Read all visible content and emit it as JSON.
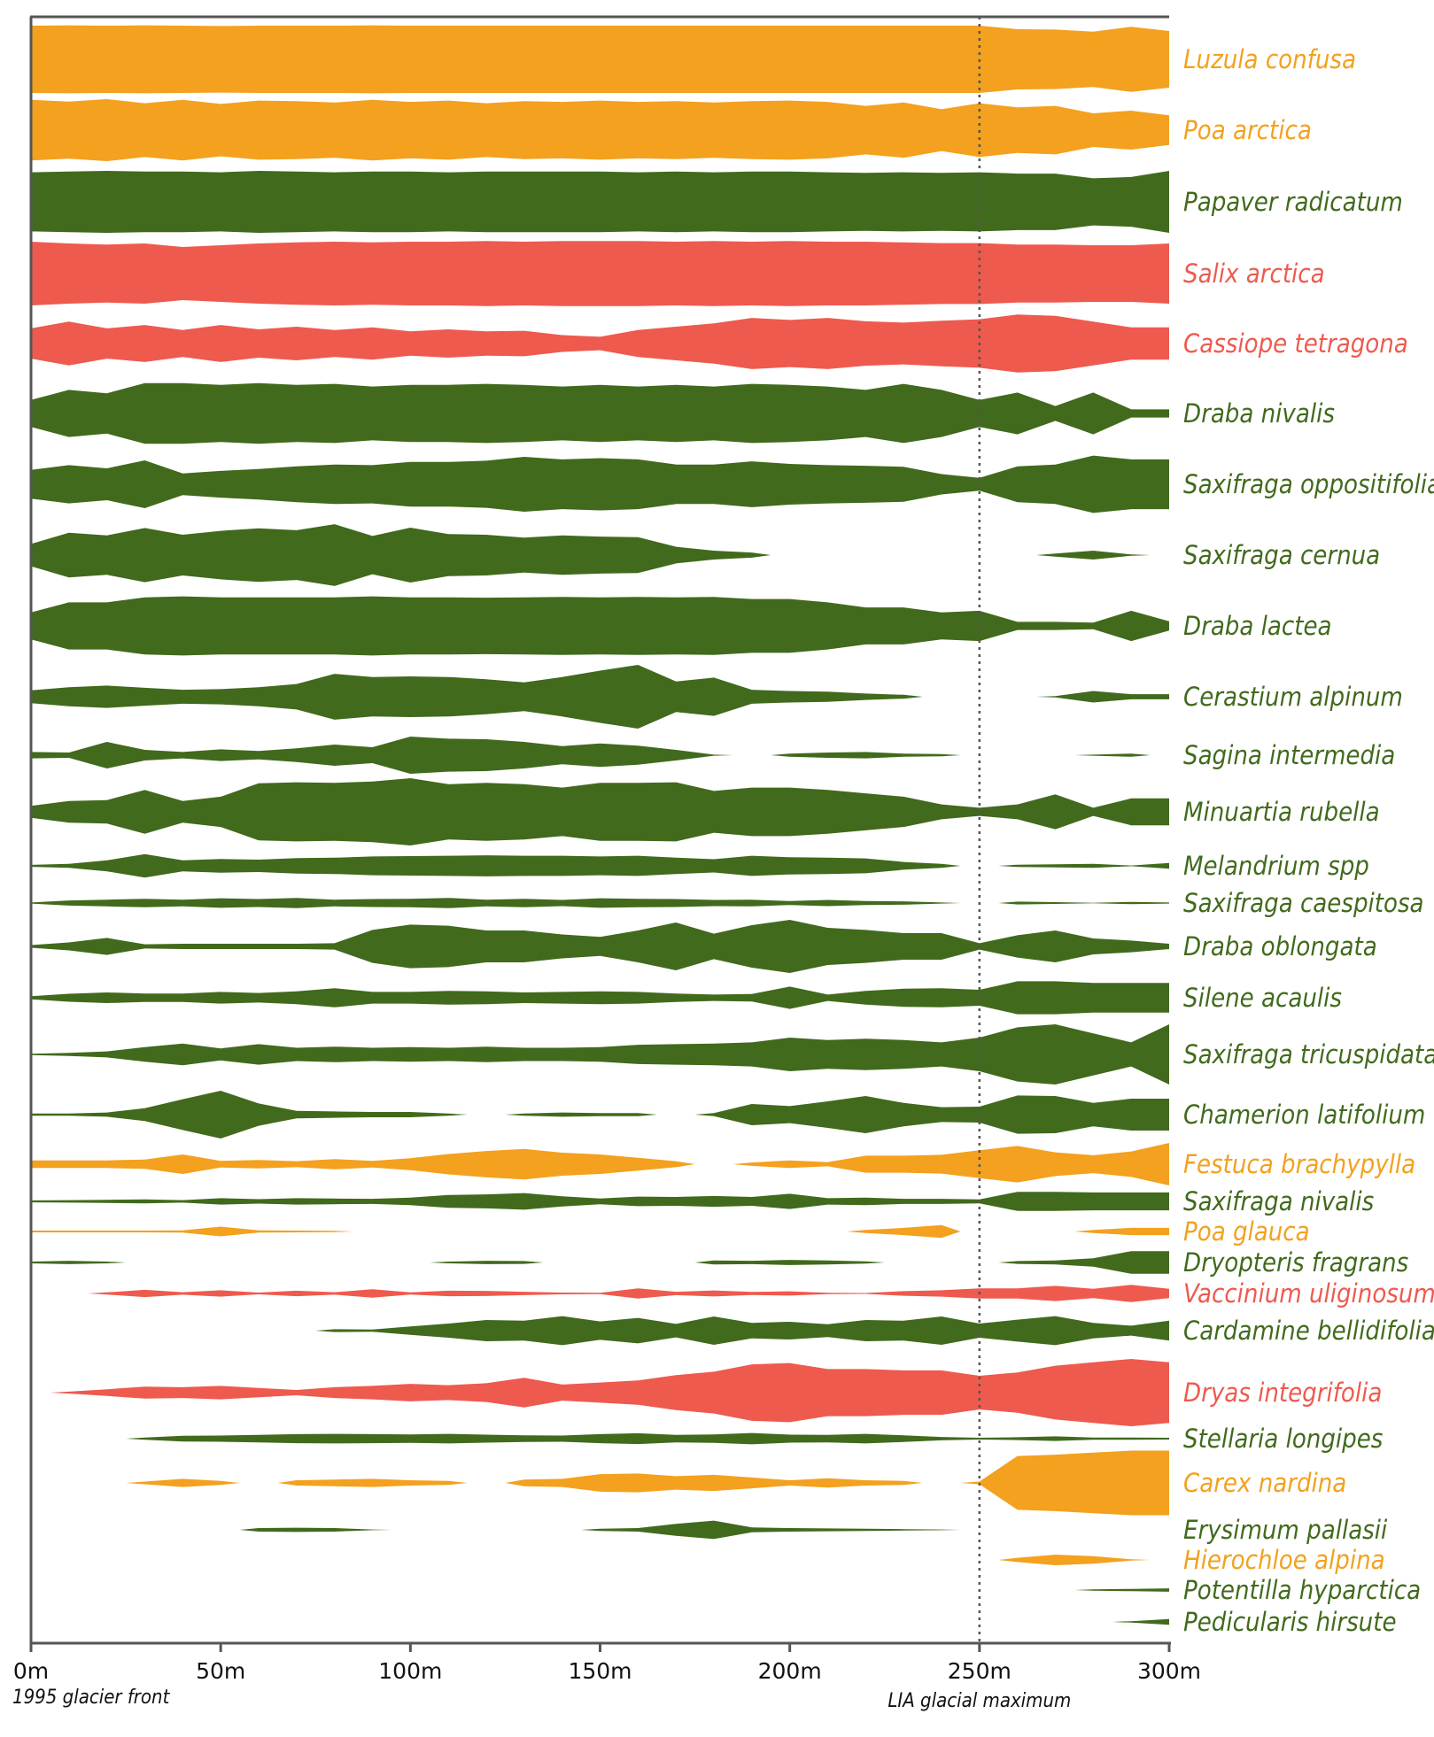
{
  "chart_data": {
    "type": "area",
    "x_unit": "m",
    "xlim": [
      0,
      300
    ],
    "x_ticks": [
      "0m",
      "50m",
      "100m",
      "150m",
      "200m",
      "250m",
      "300m"
    ],
    "x_tick_values": [
      0,
      50,
      100,
      150,
      200,
      250,
      300
    ],
    "xlabel": "",
    "ylabel": "",
    "title": "",
    "annotations": {
      "left_note": "1995 glacier front",
      "right_note": "LIA glacial maximum",
      "reference_line_x": 250
    },
    "colors": {
      "orange": "#F3A11E",
      "green": "#416A1C",
      "red": "#EE5A4E",
      "axis": "#555555"
    },
    "x": [
      0,
      10,
      20,
      30,
      40,
      50,
      60,
      70,
      80,
      90,
      100,
      110,
      120,
      130,
      140,
      150,
      160,
      170,
      180,
      190,
      200,
      210,
      220,
      230,
      240,
      250,
      260,
      270,
      280,
      290,
      300
    ],
    "series": [
      {
        "name": "Luzula confusa",
        "color": "orange",
        "values": [
          0.95,
          0.96,
          0.95,
          0.96,
          0.95,
          0.94,
          0.95,
          0.95,
          0.95,
          0.96,
          0.95,
          0.95,
          0.95,
          0.95,
          0.95,
          0.95,
          0.95,
          0.95,
          0.95,
          0.95,
          0.95,
          0.95,
          0.95,
          0.95,
          0.95,
          0.95,
          0.85,
          0.84,
          0.78,
          0.92,
          0.8
        ]
      },
      {
        "name": "Poa arctica",
        "color": "orange",
        "values": [
          0.9,
          0.85,
          0.92,
          0.8,
          0.9,
          0.78,
          0.88,
          0.86,
          0.82,
          0.9,
          0.84,
          0.88,
          0.8,
          0.86,
          0.84,
          0.88,
          0.84,
          0.86,
          0.82,
          0.86,
          0.88,
          0.84,
          0.72,
          0.82,
          0.62,
          0.8,
          0.68,
          0.72,
          0.5,
          0.58,
          0.44
        ]
      },
      {
        "name": "Papaver radicatum",
        "color": "green",
        "values": [
          0.88,
          0.9,
          0.92,
          0.9,
          0.9,
          0.88,
          0.92,
          0.9,
          0.88,
          0.9,
          0.9,
          0.88,
          0.9,
          0.9,
          0.9,
          0.9,
          0.88,
          0.9,
          0.88,
          0.9,
          0.9,
          0.88,
          0.86,
          0.88,
          0.86,
          0.88,
          0.84,
          0.84,
          0.7,
          0.74,
          0.92
        ]
      },
      {
        "name": "Salix arctica",
        "color": "red",
        "values": [
          0.9,
          0.85,
          0.82,
          0.85,
          0.75,
          0.8,
          0.85,
          0.88,
          0.9,
          0.88,
          0.9,
          0.9,
          0.92,
          0.9,
          0.92,
          0.92,
          0.92,
          0.9,
          0.92,
          0.9,
          0.92,
          0.9,
          0.9,
          0.88,
          0.86,
          0.86,
          0.82,
          0.82,
          0.8,
          0.8,
          0.85
        ]
      },
      {
        "name": "Cassiope tetragona",
        "color": "red",
        "values": [
          0.45,
          0.65,
          0.45,
          0.55,
          0.4,
          0.55,
          0.42,
          0.5,
          0.4,
          0.48,
          0.36,
          0.42,
          0.36,
          0.38,
          0.25,
          0.2,
          0.4,
          0.5,
          0.6,
          0.76,
          0.7,
          0.76,
          0.66,
          0.62,
          0.68,
          0.72,
          0.86,
          0.82,
          0.65,
          0.48,
          0.48
        ]
      },
      {
        "name": "Draba nivalis",
        "color": "green",
        "values": [
          0.4,
          0.7,
          0.6,
          0.9,
          0.9,
          0.85,
          0.9,
          0.85,
          0.88,
          0.8,
          0.85,
          0.85,
          0.88,
          0.85,
          0.8,
          0.85,
          0.8,
          0.85,
          0.8,
          0.88,
          0.85,
          0.8,
          0.7,
          0.88,
          0.7,
          0.4,
          0.62,
          0.22,
          0.62,
          0.12,
          0.12
        ]
      },
      {
        "name": "Saxifraga oppositifolia",
        "color": "green",
        "values": [
          0.45,
          0.6,
          0.5,
          0.75,
          0.34,
          0.42,
          0.48,
          0.56,
          0.62,
          0.6,
          0.7,
          0.7,
          0.74,
          0.86,
          0.78,
          0.82,
          0.78,
          0.62,
          0.62,
          0.72,
          0.64,
          0.6,
          0.58,
          0.55,
          0.32,
          0.2,
          0.56,
          0.62,
          0.9,
          0.78,
          0.78
        ]
      },
      {
        "name": "Saxifraga cernua",
        "color": "green",
        "values": [
          0.35,
          0.7,
          0.62,
          0.85,
          0.64,
          0.76,
          0.84,
          0.78,
          0.97,
          0.6,
          0.86,
          0.66,
          0.64,
          0.55,
          0.62,
          0.58,
          0.56,
          0.26,
          0.14,
          0.08,
          0,
          0,
          0,
          0,
          0,
          0,
          0,
          0.05,
          0.14,
          0.02,
          0
        ]
      },
      {
        "name": "Draba lactea",
        "color": "green",
        "values": [
          0.4,
          0.7,
          0.7,
          0.85,
          0.88,
          0.85,
          0.85,
          0.85,
          0.85,
          0.88,
          0.85,
          0.85,
          0.84,
          0.85,
          0.86,
          0.85,
          0.86,
          0.85,
          0.86,
          0.8,
          0.8,
          0.7,
          0.55,
          0.55,
          0.4,
          0.45,
          0.12,
          0.12,
          0.1,
          0.45,
          0.14
        ]
      },
      {
        "name": "Cerastium alpinum",
        "color": "green",
        "values": [
          0.2,
          0.3,
          0.35,
          0.28,
          0.22,
          0.24,
          0.3,
          0.4,
          0.72,
          0.62,
          0.64,
          0.62,
          0.55,
          0.45,
          0.62,
          0.82,
          1.0,
          0.48,
          0.6,
          0.22,
          0.18,
          0.16,
          0.1,
          0.06,
          0,
          0,
          0,
          0.02,
          0.18,
          0.08,
          0.08
        ]
      },
      {
        "name": "Sagina intermedia",
        "color": "green",
        "values": [
          0.12,
          0.1,
          0.5,
          0.2,
          0.12,
          0.22,
          0.16,
          0.26,
          0.4,
          0.3,
          0.7,
          0.62,
          0.6,
          0.5,
          0.34,
          0.44,
          0.36,
          0.2,
          0.02,
          0,
          0.06,
          0.1,
          0.12,
          0.06,
          0.04,
          0,
          0,
          0,
          0.02,
          0.06,
          0
        ]
      },
      {
        "name": "Minuartia rubella",
        "color": "green",
        "values": [
          0.18,
          0.32,
          0.35,
          0.65,
          0.32,
          0.45,
          0.85,
          0.88,
          0.86,
          0.9,
          1.0,
          0.82,
          0.86,
          0.82,
          0.72,
          0.86,
          0.86,
          0.88,
          0.62,
          0.72,
          0.72,
          0.65,
          0.55,
          0.45,
          0.22,
          0.12,
          0.22,
          0.52,
          0.12,
          0.4,
          0.4
        ]
      },
      {
        "name": "Melandrium spp",
        "color": "green",
        "values": [
          0.05,
          0.1,
          0.28,
          0.6,
          0.28,
          0.35,
          0.32,
          0.4,
          0.42,
          0.48,
          0.5,
          0.52,
          0.54,
          0.52,
          0.52,
          0.48,
          0.52,
          0.42,
          0.34,
          0.52,
          0.44,
          0.42,
          0.38,
          0.2,
          0.1,
          0,
          0.06,
          0.08,
          0.1,
          0.02,
          0.15
        ]
      },
      {
        "name": "Saxifraga caespitosa",
        "color": "green",
        "values": [
          0.04,
          0.18,
          0.24,
          0.3,
          0.24,
          0.34,
          0.28,
          0.36,
          0.24,
          0.28,
          0.3,
          0.36,
          0.24,
          0.3,
          0.22,
          0.34,
          0.3,
          0.28,
          0.22,
          0.24,
          0.14,
          0.22,
          0.14,
          0.12,
          0.04,
          0,
          0.1,
          0.06,
          0.02,
          0.08,
          0.04
        ]
      },
      {
        "name": "Draba oblongata",
        "color": "green",
        "values": [
          0.05,
          0.15,
          0.32,
          0.08,
          0.1,
          0.1,
          0.1,
          0.1,
          0.12,
          0.62,
          0.82,
          0.78,
          0.6,
          0.6,
          0.45,
          0.36,
          0.6,
          0.9,
          0.48,
          0.8,
          1.0,
          0.7,
          0.62,
          0.5,
          0.5,
          0.12,
          0.42,
          0.6,
          0.3,
          0.22,
          0.1
        ]
      },
      {
        "name": "Silene acaulis",
        "color": "green",
        "values": [
          0.06,
          0.15,
          0.2,
          0.16,
          0.16,
          0.22,
          0.18,
          0.24,
          0.36,
          0.22,
          0.22,
          0.26,
          0.24,
          0.2,
          0.22,
          0.24,
          0.22,
          0.16,
          0.12,
          0.14,
          0.42,
          0.12,
          0.26,
          0.34,
          0.36,
          0.3,
          0.62,
          0.62,
          0.56,
          0.56,
          0.56
        ]
      },
      {
        "name": "Saxifraga tricuspidata",
        "color": "green",
        "values": [
          0.02,
          0.05,
          0.1,
          0.24,
          0.36,
          0.2,
          0.34,
          0.22,
          0.26,
          0.22,
          0.24,
          0.22,
          0.26,
          0.22,
          0.22,
          0.24,
          0.32,
          0.34,
          0.36,
          0.4,
          0.56,
          0.48,
          0.52,
          0.48,
          0.4,
          0.56,
          0.9,
          1.0,
          0.7,
          0.4,
          1.0
        ]
      },
      {
        "name": "Chamerion latifolium",
        "color": "green",
        "values": [
          0.04,
          0.04,
          0.08,
          0.24,
          0.58,
          0.9,
          0.42,
          0.14,
          0.12,
          0.1,
          0.1,
          0.04,
          0,
          0.04,
          0.08,
          0.06,
          0.06,
          0,
          0.06,
          0.4,
          0.32,
          0.5,
          0.7,
          0.44,
          0.28,
          0.3,
          0.72,
          0.7,
          0.44,
          0.6,
          0.6
        ]
      },
      {
        "name": "Festuca brachypylla",
        "color": "orange",
        "values": [
          0.18,
          0.18,
          0.18,
          0.22,
          0.46,
          0.16,
          0.2,
          0.14,
          0.24,
          0.16,
          0.28,
          0.48,
          0.62,
          0.72,
          0.54,
          0.46,
          0.3,
          0.14,
          0,
          0.08,
          0.18,
          0.1,
          0.4,
          0.4,
          0.44,
          0.66,
          0.86,
          0.56,
          0.42,
          0.6,
          1.0
        ]
      },
      {
        "name": "Saxifraga nivalis",
        "color": "green",
        "values": [
          0.06,
          0.08,
          0.1,
          0.12,
          0.08,
          0.2,
          0.14,
          0.2,
          0.18,
          0.16,
          0.24,
          0.4,
          0.44,
          0.52,
          0.32,
          0.18,
          0.3,
          0.28,
          0.34,
          0.28,
          0.48,
          0.2,
          0.24,
          0.16,
          0.16,
          0.12,
          0.6,
          0.6,
          0.56,
          0.56,
          0.56
        ]
      },
      {
        "name": "Poa glauca",
        "color": "orange",
        "values": [
          0.08,
          0.08,
          0.08,
          0.08,
          0.1,
          0.46,
          0.1,
          0.08,
          0.06,
          0,
          0,
          0,
          0,
          0,
          0,
          0,
          0,
          0,
          0,
          0,
          0,
          0,
          0.14,
          0.34,
          0.6,
          0,
          0,
          0,
          0.14,
          0.34,
          0.34
        ]
      },
      {
        "name": "Dryopteris fragrans",
        "color": "green",
        "values": [
          0.06,
          0.12,
          0.06,
          0,
          0,
          0,
          0,
          0,
          0,
          0,
          0,
          0.06,
          0.12,
          0.1,
          0,
          0,
          0,
          0,
          0.14,
          0.12,
          0.18,
          0.14,
          0.08,
          0,
          0,
          0,
          0.1,
          0.14,
          0.3,
          0.8,
          0.8
        ]
      },
      {
        "name": "Vaccinium uliginosum",
        "color": "red",
        "values": [
          0,
          0,
          0.1,
          0.34,
          0.12,
          0.3,
          0.08,
          0.26,
          0.12,
          0.4,
          0.1,
          0.26,
          0.24,
          0.16,
          0.08,
          0.06,
          0.48,
          0.16,
          0.28,
          0.14,
          0.2,
          0.06,
          0.04,
          0.22,
          0.3,
          0.48,
          0.48,
          0.72,
          0.44,
          0.82,
          0.44
        ]
      },
      {
        "name": "Cardamine bellidifolia",
        "color": "green",
        "values": [
          0,
          0,
          0,
          0,
          0,
          0,
          0,
          0,
          0.08,
          0.06,
          0.24,
          0.4,
          0.6,
          0.56,
          0.82,
          0.52,
          0.72,
          0.38,
          0.8,
          0.44,
          0.5,
          0.36,
          0.6,
          0.56,
          0.8,
          0.4,
          0.62,
          0.82,
          0.44,
          0.28,
          0.56
        ]
      },
      {
        "name": "Dryas integrifolia",
        "color": "red",
        "values": [
          0,
          0.03,
          0.1,
          0.18,
          0.16,
          0.2,
          0.14,
          0.08,
          0.16,
          0.2,
          0.26,
          0.22,
          0.28,
          0.44,
          0.24,
          0.3,
          0.36,
          0.52,
          0.62,
          0.84,
          0.88,
          0.7,
          0.7,
          0.66,
          0.66,
          0.5,
          0.6,
          0.8,
          0.9,
          1.0,
          0.9
        ]
      },
      {
        "name": "Stellaria longipes",
        "color": "green",
        "values": [
          0,
          0,
          0,
          0.08,
          0.2,
          0.22,
          0.26,
          0.32,
          0.34,
          0.32,
          0.3,
          0.34,
          0.28,
          0.24,
          0.22,
          0.32,
          0.38,
          0.26,
          0.3,
          0.4,
          0.28,
          0.26,
          0.34,
          0.24,
          0.12,
          0.06,
          0.1,
          0.16,
          0.08,
          0.08,
          0.06
        ]
      },
      {
        "name": "Carex nardina",
        "color": "orange",
        "values": [
          0,
          0,
          0,
          0.04,
          0.12,
          0.06,
          0,
          0.08,
          0.1,
          0.12,
          0.08,
          0.06,
          0,
          0.1,
          0.12,
          0.26,
          0.28,
          0.2,
          0.24,
          0.16,
          0.08,
          0.14,
          0.08,
          0.06,
          0,
          0.04,
          0.8,
          0.84,
          0.9,
          0.96,
          0.96
        ]
      },
      {
        "name": "Erysimum pallasii",
        "color": "green",
        "values": [
          0,
          0,
          0,
          0,
          0,
          0,
          0.1,
          0.12,
          0.1,
          0.02,
          0,
          0,
          0,
          0,
          0,
          0.06,
          0.1,
          0.34,
          0.52,
          0.14,
          0.1,
          0.08,
          0.06,
          0.04,
          0.02,
          0,
          0,
          0,
          0,
          0,
          0
        ]
      },
      {
        "name": "Hierochloe alpina",
        "color": "orange",
        "values": [
          0,
          0,
          0,
          0,
          0,
          0,
          0,
          0,
          0,
          0,
          0,
          0,
          0,
          0,
          0,
          0,
          0,
          0,
          0,
          0,
          0,
          0,
          0,
          0,
          0,
          0,
          0.2,
          0.5,
          0.36,
          0.06,
          0
        ]
      },
      {
        "name": "Potentilla hyparctica",
        "color": "green",
        "values": [
          0,
          0,
          0,
          0,
          0,
          0,
          0,
          0,
          0,
          0,
          0,
          0,
          0,
          0,
          0,
          0,
          0,
          0,
          0,
          0,
          0,
          0,
          0,
          0,
          0,
          0,
          0,
          0,
          0.1,
          0.16,
          0.24
        ]
      },
      {
        "name": "Pedicularis hirsute",
        "color": "green",
        "values": [
          0,
          0,
          0,
          0,
          0,
          0,
          0,
          0,
          0,
          0,
          0,
          0,
          0,
          0,
          0,
          0,
          0,
          0,
          0,
          0,
          0,
          0,
          0,
          0,
          0,
          0,
          0,
          0,
          0,
          0.1,
          0.4
        ]
      }
    ]
  }
}
